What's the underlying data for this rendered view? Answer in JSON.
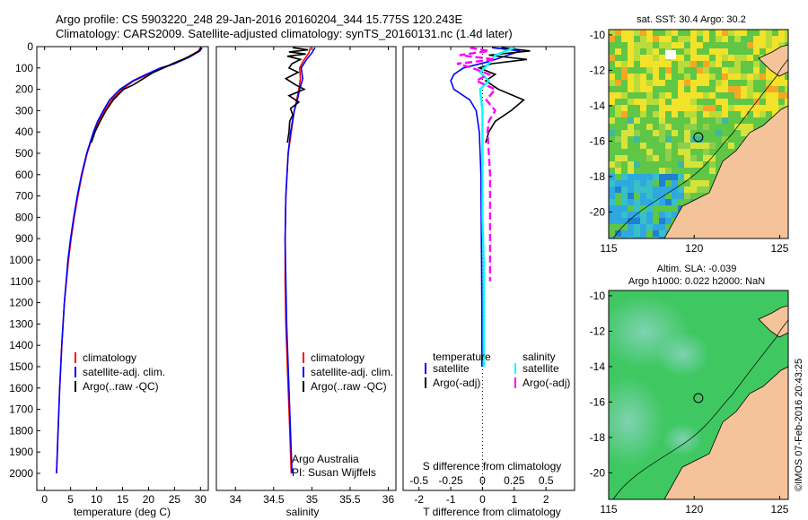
{
  "header": {
    "line1": "Argo profile: CS 5903220_248 29-Jan-2016 20160204_344 15.775S 120.243E",
    "line2": "Climatology: CARS2009. Satellite-adjusted climatology: synTS_20160131.nc (1.4d later)"
  },
  "colors": {
    "climatology": "#ff0000",
    "satellite": "#0000ff",
    "argo": "#000000",
    "salinity_satellite": "#00ffff",
    "salinity_argo": "#ff00ff",
    "land": "#f5c39a"
  },
  "chart_data": [
    {
      "type": "line",
      "name": "temperature-profile",
      "xlabel": "temperature (deg C)",
      "ylabel": "",
      "xlim": [
        -1.5,
        31.5
      ],
      "ylim": [
        2080,
        0
      ],
      "xticks": [
        "0",
        "5",
        "10",
        "15",
        "20",
        "25",
        "30"
      ],
      "yticks": [
        "0",
        "100",
        "200",
        "300",
        "400",
        "500",
        "600",
        "700",
        "800",
        "900",
        "1000",
        "1100",
        "1200",
        "1300",
        "1400",
        "1500",
        "1600",
        "1700",
        "1800",
        "1900",
        "2000"
      ],
      "legend": [
        "climatology",
        "satellite-adj. clim.",
        "Argo(..raw -QC)"
      ],
      "series": [
        {
          "name": "climatology",
          "color": "#ff0000",
          "depth": [
            5,
            20,
            50,
            80,
            100,
            130,
            160,
            200,
            250,
            300,
            350,
            400,
            500,
            600,
            700,
            800,
            900,
            1000,
            1200,
            1400,
            1600,
            1800,
            2000
          ],
          "values": [
            30.0,
            29.6,
            27.5,
            25.0,
            22.8,
            20.0,
            17.2,
            14.9,
            12.9,
            11.6,
            10.4,
            9.5,
            8.2,
            7.2,
            6.4,
            5.7,
            5.1,
            4.6,
            3.8,
            3.3,
            2.9,
            2.6,
            2.3
          ]
        },
        {
          "name": "satellite-adj. clim.",
          "color": "#0000ff",
          "depth": [
            5,
            20,
            50,
            80,
            100,
            130,
            160,
            200,
            250,
            300,
            350,
            400,
            500,
            600,
            700,
            800,
            900,
            1000,
            1200,
            1400,
            1600,
            1800,
            2000
          ],
          "values": [
            30.3,
            29.9,
            27.8,
            25.0,
            22.3,
            19.6,
            17.0,
            14.5,
            12.5,
            11.3,
            10.2,
            9.4,
            8.1,
            7.1,
            6.3,
            5.6,
            5.0,
            4.5,
            3.8,
            3.3,
            2.9,
            2.6,
            2.3
          ]
        },
        {
          "name": "Argo(..raw -QC)",
          "color": "#000000",
          "depth": [
            5,
            20,
            40,
            60,
            80,
            100,
            120,
            150,
            180,
            200,
            250,
            300,
            350,
            400,
            450
          ],
          "values": [
            30.1,
            29.8,
            28.3,
            26.6,
            24.6,
            22.9,
            21.0,
            19.0,
            17.0,
            15.2,
            13.2,
            11.8,
            10.7,
            9.7,
            9.0
          ]
        }
      ]
    },
    {
      "type": "line",
      "name": "salinity-profile",
      "xlabel": "salinity",
      "xlim": [
        33.75,
        36.1
      ],
      "ylim": [
        2080,
        0
      ],
      "xticks": [
        "34",
        "34.5",
        "35",
        "35.5",
        "36"
      ],
      "legend": [
        "climatology",
        "satellite-adj. clim.",
        "Argo(..raw -QC)"
      ],
      "series": [
        {
          "name": "climatology",
          "color": "#ff0000",
          "depth": [
            5,
            30,
            60,
            100,
            150,
            200,
            250,
            300,
            400,
            500,
            700,
            900,
            1100,
            1300,
            1500,
            1700,
            1900,
            2000
          ],
          "values": [
            34.98,
            34.96,
            34.9,
            34.84,
            34.85,
            34.83,
            34.8,
            34.77,
            34.73,
            34.69,
            34.66,
            34.65,
            34.65,
            34.66,
            34.68,
            34.7,
            34.72,
            34.73
          ]
        },
        {
          "name": "satellite-adj. clim.",
          "color": "#0000ff",
          "depth": [
            5,
            30,
            60,
            100,
            150,
            200,
            250,
            300,
            400,
            500,
            700,
            900,
            1100,
            1300,
            1500,
            1700,
            1900,
            2000
          ],
          "values": [
            35.04,
            35.0,
            34.93,
            34.86,
            34.88,
            34.84,
            34.81,
            34.77,
            34.72,
            34.69,
            34.66,
            34.65,
            34.66,
            34.67,
            34.69,
            34.71,
            34.73,
            34.74
          ]
        },
        {
          "name": "Argo(..raw -QC)",
          "color": "#000000",
          "depth": [
            5,
            15,
            25,
            35,
            45,
            60,
            80,
            100,
            120,
            150,
            180,
            200,
            230,
            260,
            290,
            320,
            350,
            400,
            450
          ],
          "values": [
            34.75,
            34.95,
            34.7,
            34.92,
            34.68,
            34.85,
            34.74,
            34.7,
            34.82,
            34.66,
            34.79,
            34.9,
            34.7,
            34.83,
            34.72,
            34.75,
            34.71,
            34.7,
            34.68
          ]
        }
      ]
    },
    {
      "type": "line",
      "name": "difference-profile",
      "xlabel": "T difference from climatology",
      "top_xlabel": "S difference from climatology",
      "xlim": [
        -2.5,
        2.9
      ],
      "ylim": [
        2080,
        0
      ],
      "xticks": [
        "-2",
        "-1",
        "0",
        "1",
        "2"
      ],
      "top_xticks": [
        "-0.5",
        "-0.25",
        "0",
        "0.25",
        "0.5"
      ],
      "legend_temperature_title": "temperature",
      "legend_salinity_title": "salinity",
      "legend": [
        "satellite",
        "Argo(-adj)",
        "satellite",
        "Argo(-adj)"
      ],
      "series": [
        {
          "name": "temperature satellite",
          "color": "#0000ff",
          "depth": [
            5,
            20,
            40,
            70,
            100,
            130,
            160,
            200,
            250,
            300,
            400,
            600,
            800,
            1000,
            1200,
            1400,
            1500
          ],
          "values": [
            0.3,
            1.2,
            0.8,
            0.2,
            -0.6,
            -0.9,
            -1.0,
            -0.9,
            -0.4,
            -0.2,
            -0.1,
            -0.05,
            -0.04,
            -0.03,
            -0.02,
            -0.02,
            -0.02
          ]
        },
        {
          "name": "temperature Argo(-adj)",
          "color": "#000000",
          "depth": [
            5,
            20,
            40,
            60,
            80,
            100,
            130,
            160,
            200,
            250,
            300,
            350,
            400,
            450
          ],
          "values": [
            0.6,
            1.5,
            0.2,
            1.4,
            0.3,
            -0.1,
            0.4,
            0.1,
            0.5,
            1.3,
            0.9,
            0.4,
            0.2,
            0.1
          ]
        },
        {
          "name": "salinity satellite",
          "color": "#00ffff",
          "depth": [
            5,
            40,
            80,
            120,
            160,
            200,
            300,
            400,
            600,
            800,
            1000,
            1200,
            1400,
            1500
          ],
          "values": [
            0.25,
            0.1,
            0.05,
            -0.02,
            0.05,
            -0.02,
            0.0,
            0.0,
            0.0,
            0.0,
            0.01,
            0.01,
            0.01,
            0.01
          ]
        },
        {
          "name": "salinity Argo(-adj)",
          "color": "#ff00ff",
          "depth": [
            5,
            20,
            40,
            60,
            80,
            100,
            130,
            160,
            200,
            250,
            300,
            350,
            400,
            500,
            600,
            700,
            800,
            900,
            1000,
            1100
          ],
          "values": [
            -0.1,
            0.05,
            -0.18,
            0.1,
            -0.2,
            -0.08,
            0.05,
            -0.05,
            0.1,
            0.03,
            0.1,
            0.05,
            0.04,
            0.05,
            0.06,
            0.06,
            0.06,
            0.06,
            0.06,
            0.06
          ]
        }
      ]
    },
    {
      "type": "heatmap",
      "name": "sst-map",
      "title": "sat. SST: 30.4 Argo: 30.2",
      "xlim": [
        115,
        125.5
      ],
      "ylim": [
        -21.5,
        -9.7
      ],
      "xticks": [
        "115",
        "120",
        "125"
      ],
      "yticks": [
        "-10",
        "-12",
        "-14",
        "-16",
        "-18",
        "-20"
      ],
      "argo_position": {
        "lon": 120.243,
        "lat": -15.775
      }
    },
    {
      "type": "heatmap",
      "name": "sla-map",
      "title_line1": "Altim. SLA: -0.039",
      "title_line2": "Argo h1000: 0.022 h2000: NaN",
      "xlim": [
        115,
        125.5
      ],
      "ylim": [
        -21.5,
        -9.7
      ],
      "xticks": [
        "115",
        "120",
        "125"
      ],
      "yticks": [
        "-10",
        "-12",
        "-14",
        "-16",
        "-18",
        "-20"
      ],
      "argo_position": {
        "lon": 120.243,
        "lat": -15.775
      }
    }
  ],
  "annotations": {
    "credit_line1": "Argo Australia",
    "credit_line2": "PI: Susan Wijffels",
    "imos_stamp": "©IMOS 07-Feb-2016 20:43:25"
  }
}
